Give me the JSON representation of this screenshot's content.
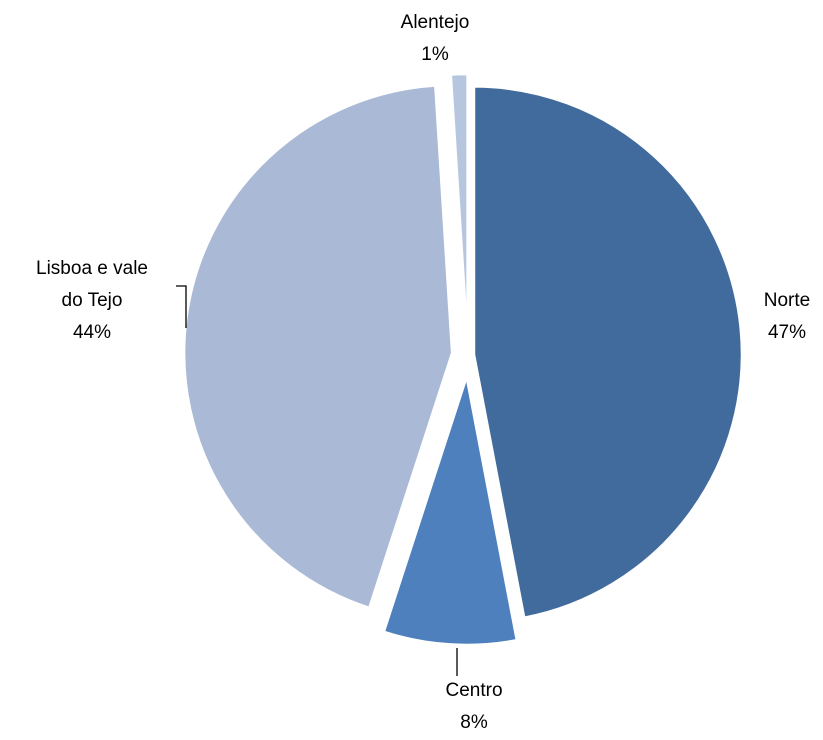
{
  "chart_data": {
    "type": "pie",
    "categories": [
      "Norte",
      "Centro",
      "Lisboa e vale do Tejo",
      "Alentejo"
    ],
    "values": [
      47,
      8,
      44,
      1
    ],
    "data_labels": [
      "47%",
      "8%",
      "44%",
      "1%"
    ],
    "category_labels": [
      [
        "Norte"
      ],
      [
        "Centro"
      ],
      [
        "Lisboa e vale",
        "do Tejo"
      ],
      [
        "Alentejo"
      ]
    ],
    "colors": [
      "#416B9D",
      "#4E80BD",
      "#A9B9D6",
      "#B7C6DF"
    ],
    "exploded": true,
    "start_angle": "12 o'clock, clockwise",
    "legend": "none"
  }
}
